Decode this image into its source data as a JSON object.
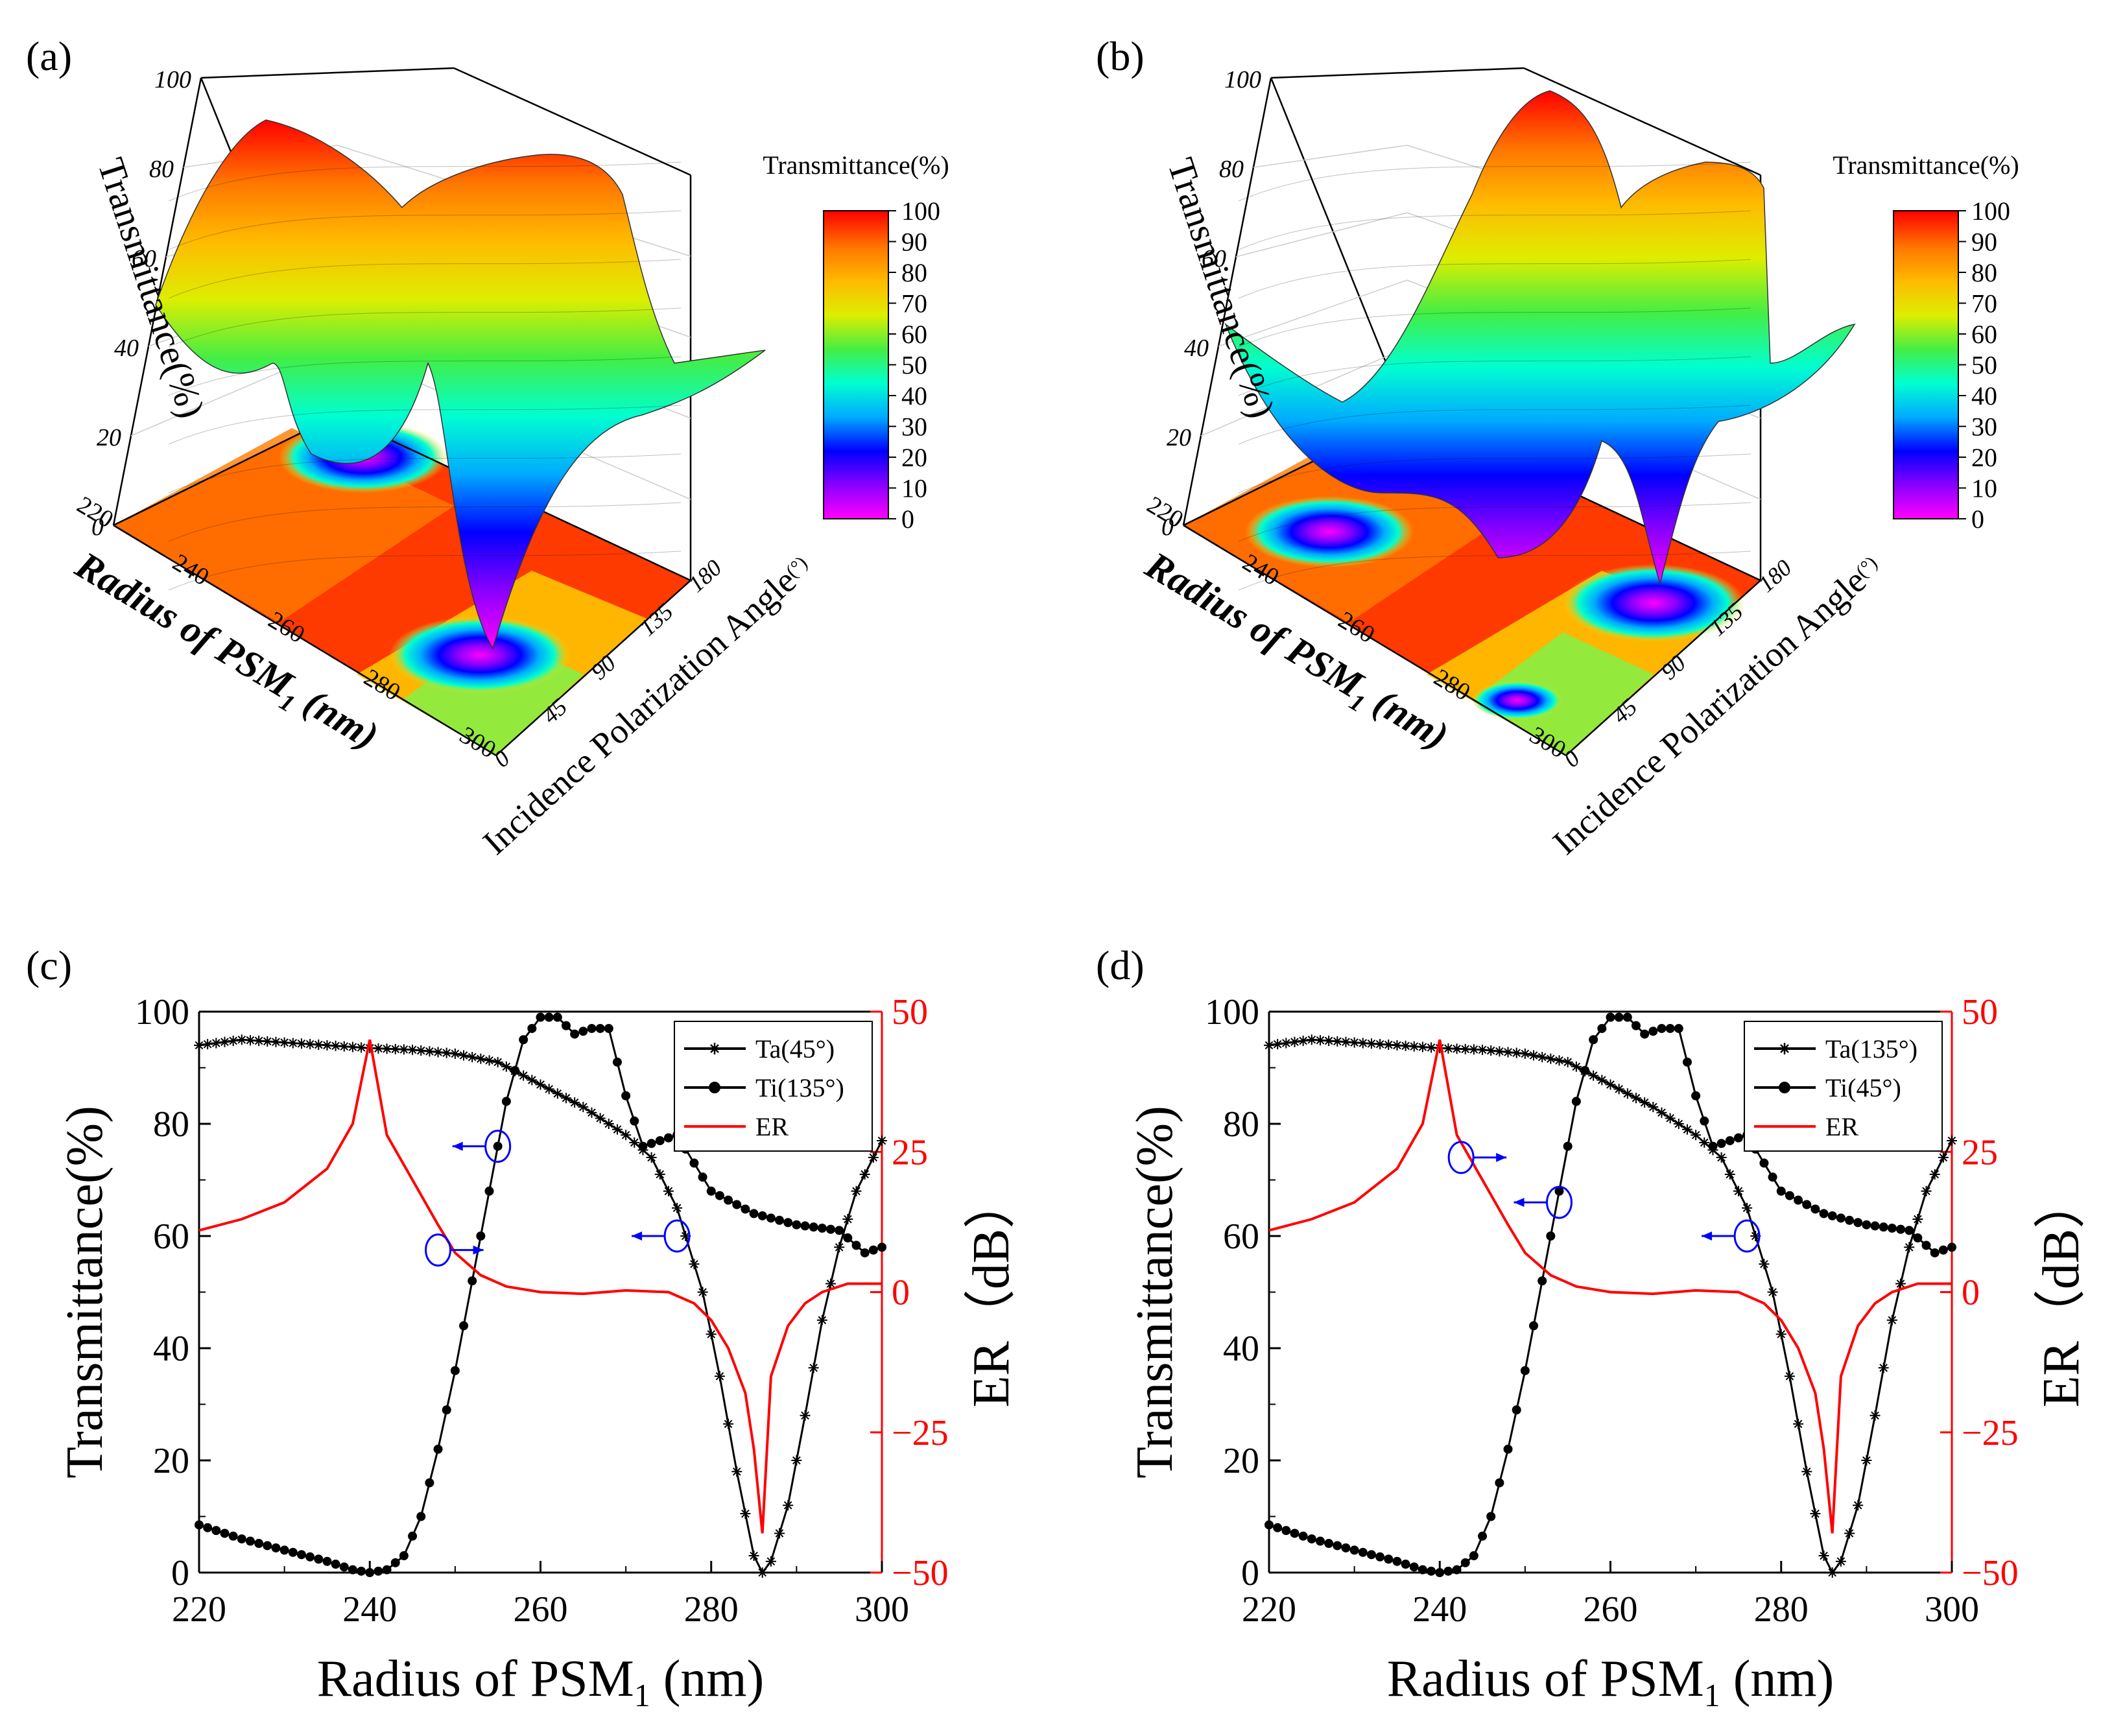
{
  "panels": {
    "a": {
      "label": "(a)"
    },
    "b": {
      "label": "(b)"
    },
    "c": {
      "label": "(c)"
    },
    "d": {
      "label": "(d)"
    }
  },
  "surface3d": {
    "z_label": "Transmittance(%)",
    "z_ticks": [
      "0",
      "20",
      "40",
      "60",
      "80",
      "100"
    ],
    "x_label": "Radius of PSM",
    "x_label_sub": "1",
    "x_label_unit": " (nm)",
    "x_ticks": [
      "220",
      "240",
      "260",
      "280",
      "300"
    ],
    "y_label": "Incidence Polarization Angle",
    "y_label_unit": "(°)",
    "y_ticks": [
      "0",
      "45",
      "90",
      "135",
      "180"
    ],
    "colorbar_title": "Transmittance(%)",
    "colorbar_ticks": [
      "100",
      "90",
      "80",
      "70",
      "60",
      "50",
      "40",
      "30",
      "20",
      "10",
      "0"
    ],
    "colormap": [
      "#ff00ff",
      "#8800ff",
      "#0000ff",
      "#00aaff",
      "#00ffd0",
      "#44ee44",
      "#ddee00",
      "#ffbb00",
      "#ff7700",
      "#ff0000"
    ]
  },
  "chart_data": [
    {
      "panel": "c",
      "type": "line",
      "xlabel": "Radius of PSM",
      "xlabel_sub": "1",
      "xlabel_unit": " (nm)",
      "ylabel": "Transmittance(%)",
      "y2label": "ER（dB）",
      "xlim": [
        220,
        300
      ],
      "ylim": [
        0,
        100
      ],
      "y2lim": [
        -50,
        50
      ],
      "x_ticks": [
        "220",
        "240",
        "260",
        "280",
        "300"
      ],
      "y_ticks": [
        "0",
        "20",
        "40",
        "60",
        "80",
        "100"
      ],
      "y2_ticks": [
        "−50",
        "−25",
        "0",
        "25",
        "50"
      ],
      "colors": {
        "ta": "#000000",
        "ti": "#000000",
        "er": "#ff0000",
        "marker": "#0000ff"
      },
      "series": [
        {
          "name": "Ta(45°)",
          "marker": "star",
          "axis": "left",
          "points": [
            [
              220,
              94
            ],
            [
              225,
              95
            ],
            [
              230,
              94.5
            ],
            [
              235,
              94
            ],
            [
              240,
              93.5
            ],
            [
              245,
              93.2
            ],
            [
              250,
              92.5
            ],
            [
              255,
              91
            ],
            [
              260,
              87
            ],
            [
              265,
              83
            ],
            [
              270,
              78
            ],
            [
              273,
              74
            ],
            [
              276,
              65
            ],
            [
              279,
              50
            ],
            [
              281,
              35
            ],
            [
              283,
              18
            ],
            [
              285,
              3
            ],
            [
              286,
              0
            ],
            [
              287,
              2
            ],
            [
              289,
              12
            ],
            [
              291,
              28
            ],
            [
              293,
              45
            ],
            [
              295,
              58
            ],
            [
              297,
              68
            ],
            [
              300,
              77
            ]
          ]
        },
        {
          "name": "Ti(135°)",
          "marker": "dot",
          "axis": "left",
          "points": [
            [
              220,
              8.5
            ],
            [
              225,
              6
            ],
            [
              230,
              4
            ],
            [
              235,
              2
            ],
            [
              238,
              0.5
            ],
            [
              240,
              0
            ],
            [
              242,
              0.5
            ],
            [
              244,
              3
            ],
            [
              246,
              10
            ],
            [
              248,
              22
            ],
            [
              250,
              36
            ],
            [
              252,
              52
            ],
            [
              254,
              68
            ],
            [
              256,
              84
            ],
            [
              258,
              95
            ],
            [
              260,
              99
            ],
            [
              262,
              99
            ],
            [
              264,
              96
            ],
            [
              266,
              97
            ],
            [
              268,
              97
            ],
            [
              270,
              85
            ],
            [
              272,
              76
            ],
            [
              274,
              77
            ],
            [
              276,
              78
            ],
            [
              278,
              73
            ],
            [
              280,
              68
            ],
            [
              285,
              64
            ],
            [
              290,
              62
            ],
            [
              295,
              61
            ],
            [
              298,
              57
            ],
            [
              300,
              58
            ]
          ]
        },
        {
          "name": "ER",
          "marker": "none",
          "axis": "right",
          "points": [
            [
              220,
              11
            ],
            [
              225,
              13
            ],
            [
              230,
              16
            ],
            [
              235,
              22
            ],
            [
              238,
              30
            ],
            [
              240,
              45
            ],
            [
              242,
              28
            ],
            [
              245,
              20
            ],
            [
              248,
              12
            ],
            [
              250,
              7
            ],
            [
              253,
              3
            ],
            [
              256,
              1
            ],
            [
              260,
              0
            ],
            [
              265,
              -0.3
            ],
            [
              270,
              0.3
            ],
            [
              275,
              0
            ],
            [
              278,
              -2
            ],
            [
              280,
              -5
            ],
            [
              282,
              -10
            ],
            [
              284,
              -18
            ],
            [
              285,
              -28
            ],
            [
              286,
              -43
            ],
            [
              287,
              -15
            ],
            [
              289,
              -6
            ],
            [
              291,
              -2
            ],
            [
              293,
              0
            ],
            [
              296,
              1.5
            ],
            [
              300,
              1.5
            ]
          ]
        }
      ],
      "legend": [
        "Ta(45°)",
        "Ti(135°)",
        "ER"
      ],
      "annotations": [
        {
          "x": 255,
          "y": 76,
          "arrow": "left"
        },
        {
          "x": 248,
          "y": 57.5,
          "arrow": "right"
        },
        {
          "x": 276,
          "y": 60,
          "arrow": "left"
        }
      ]
    },
    {
      "panel": "d",
      "type": "line",
      "xlabel": "Radius of PSM",
      "xlabel_sub": "1",
      "xlabel_unit": " (nm)",
      "ylabel": "Transmittance(%)",
      "y2label": "ER（dB）",
      "xlim": [
        220,
        300
      ],
      "ylim": [
        0,
        100
      ],
      "y2lim": [
        -50,
        50
      ],
      "x_ticks": [
        "220",
        "240",
        "260",
        "280",
        "300"
      ],
      "y_ticks": [
        "0",
        "20",
        "40",
        "60",
        "80",
        "100"
      ],
      "y2_ticks": [
        "−50",
        "−25",
        "0",
        "25",
        "50"
      ],
      "colors": {
        "ta": "#000000",
        "ti": "#000000",
        "er": "#ff0000",
        "marker": "#0000ff"
      },
      "series": [
        {
          "name": "Ta(135°)",
          "marker": "star",
          "axis": "left",
          "points": [
            [
              220,
              94
            ],
            [
              225,
              95
            ],
            [
              230,
              94.5
            ],
            [
              235,
              94
            ],
            [
              240,
              93.5
            ],
            [
              245,
              93.2
            ],
            [
              250,
              92.5
            ],
            [
              255,
              91
            ],
            [
              260,
              87
            ],
            [
              265,
              83
            ],
            [
              270,
              78
            ],
            [
              273,
              74
            ],
            [
              276,
              65
            ],
            [
              279,
              50
            ],
            [
              281,
              35
            ],
            [
              283,
              18
            ],
            [
              285,
              3
            ],
            [
              286,
              0
            ],
            [
              287,
              2
            ],
            [
              289,
              12
            ],
            [
              291,
              28
            ],
            [
              293,
              45
            ],
            [
              295,
              58
            ],
            [
              297,
              68
            ],
            [
              300,
              77
            ]
          ]
        },
        {
          "name": "Ti(45°)",
          "marker": "dot",
          "axis": "left",
          "points": [
            [
              220,
              8.5
            ],
            [
              225,
              6
            ],
            [
              230,
              4
            ],
            [
              235,
              2
            ],
            [
              238,
              0.5
            ],
            [
              240,
              0
            ],
            [
              242,
              0.5
            ],
            [
              244,
              3
            ],
            [
              246,
              10
            ],
            [
              248,
              22
            ],
            [
              250,
              36
            ],
            [
              252,
              52
            ],
            [
              254,
              68
            ],
            [
              256,
              84
            ],
            [
              258,
              95
            ],
            [
              260,
              99
            ],
            [
              262,
              99
            ],
            [
              264,
              96
            ],
            [
              266,
              97
            ],
            [
              268,
              97
            ],
            [
              270,
              85
            ],
            [
              272,
              76
            ],
            [
              274,
              77
            ],
            [
              276,
              78
            ],
            [
              278,
              73
            ],
            [
              280,
              68
            ],
            [
              285,
              64
            ],
            [
              290,
              62
            ],
            [
              295,
              61
            ],
            [
              298,
              57
            ],
            [
              300,
              58
            ]
          ]
        },
        {
          "name": "ER",
          "marker": "none",
          "axis": "right",
          "points": [
            [
              220,
              11
            ],
            [
              225,
              13
            ],
            [
              230,
              16
            ],
            [
              235,
              22
            ],
            [
              238,
              30
            ],
            [
              240,
              45
            ],
            [
              242,
              28
            ],
            [
              245,
              20
            ],
            [
              248,
              12
            ],
            [
              250,
              7
            ],
            [
              253,
              3
            ],
            [
              256,
              1
            ],
            [
              260,
              0
            ],
            [
              265,
              -0.3
            ],
            [
              270,
              0.3
            ],
            [
              275,
              0
            ],
            [
              278,
              -2
            ],
            [
              280,
              -5
            ],
            [
              282,
              -10
            ],
            [
              284,
              -18
            ],
            [
              285,
              -28
            ],
            [
              286,
              -43
            ],
            [
              287,
              -15
            ],
            [
              289,
              -6
            ],
            [
              291,
              -2
            ],
            [
              293,
              0
            ],
            [
              296,
              1.5
            ],
            [
              300,
              1.5
            ]
          ]
        }
      ],
      "legend": [
        "Ta(135°)",
        "Ti(45°)",
        "ER"
      ],
      "annotations": [
        {
          "x": 242.5,
          "y": 74,
          "arrow": "right"
        },
        {
          "x": 254,
          "y": 66,
          "arrow": "left"
        },
        {
          "x": 276,
          "y": 60,
          "arrow": "left"
        }
      ]
    }
  ]
}
